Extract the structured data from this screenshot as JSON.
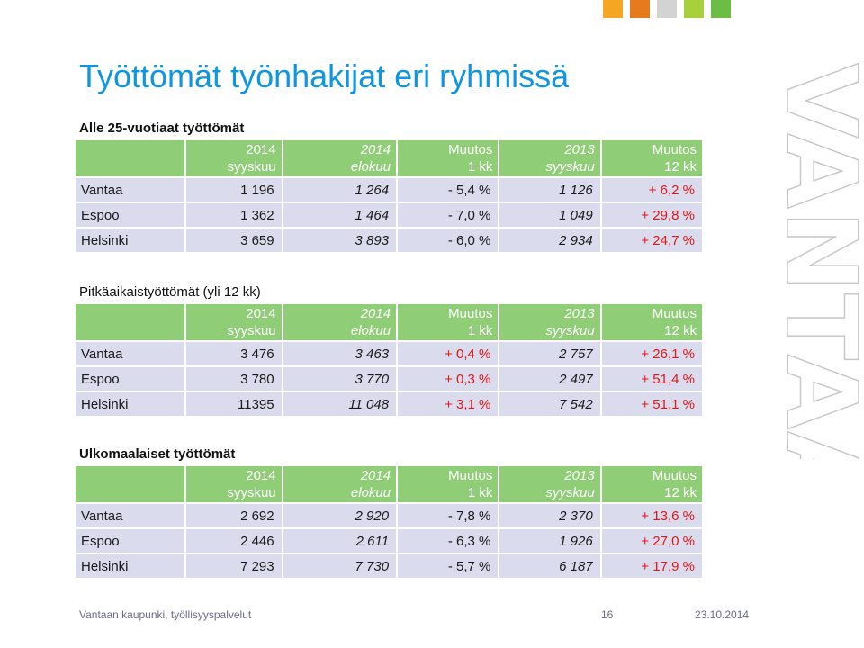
{
  "accent": {
    "title": "#0f96e0",
    "header_green": "#8fce77",
    "row_bg": "#dbdbee",
    "red": "#e01818"
  },
  "corner_squares": [
    "#f5a623",
    "#e87a1e",
    "#d3d3d3",
    "#a8cf3c",
    "#6bbd45"
  ],
  "watermark": "VANTAA",
  "title": "Työttömät työnhakijat eri ryhmissä",
  "columns": [
    [
      "2014",
      "syyskuu"
    ],
    [
      "2014",
      "elokuu"
    ],
    [
      "Muutos",
      "1 kk"
    ],
    [
      "2013",
      "syyskuu"
    ],
    [
      "Muutos",
      "12 kk"
    ]
  ],
  "sections": [
    {
      "title": "Alle 25-vuotiaat työttömät",
      "rows": [
        [
          "Vantaa",
          "1 196",
          "1 264",
          "- 5,4 %",
          "1 126",
          "+ 6,2 %"
        ],
        [
          "Espoo",
          "1 362",
          "1 464",
          "- 7,0 %",
          "1 049",
          "+ 29,8 %"
        ],
        [
          "Helsinki",
          "3 659",
          "3 893",
          "- 6,0 %",
          "2 934",
          "+ 24,7 %"
        ]
      ]
    },
    {
      "title": "Pitkäaikaistyöttömät (yli 12 kk)",
      "rows": [
        [
          "Vantaa",
          "3 476",
          "3 463",
          "+ 0,4 %",
          "2 757",
          "+ 26,1 %"
        ],
        [
          "Espoo",
          "3 780",
          "3 770",
          "+ 0,3 %",
          "2 497",
          "+ 51,4 %"
        ],
        [
          "Helsinki",
          "11395",
          "11 048",
          "+ 3,1 %",
          "7 542",
          "+ 51,1 %"
        ]
      ]
    },
    {
      "title": "Ulkomaalaiset työttömät",
      "rows": [
        [
          "Vantaa",
          "2 692",
          "2 920",
          "- 7,8 %",
          "2 370",
          "+ 13,6 %"
        ],
        [
          "Espoo",
          "2 446",
          "2 611",
          "- 6,3 %",
          "1 926",
          "+ 27,0 %"
        ],
        [
          "Helsinki",
          "7 293",
          "7 730",
          "- 5,7 %",
          "6 187",
          "+ 17,9 %"
        ]
      ]
    }
  ],
  "footer": {
    "source": "Vantaan kaupunki, työllisyyspalvelut",
    "page": "16",
    "date": "23.10.2014"
  }
}
